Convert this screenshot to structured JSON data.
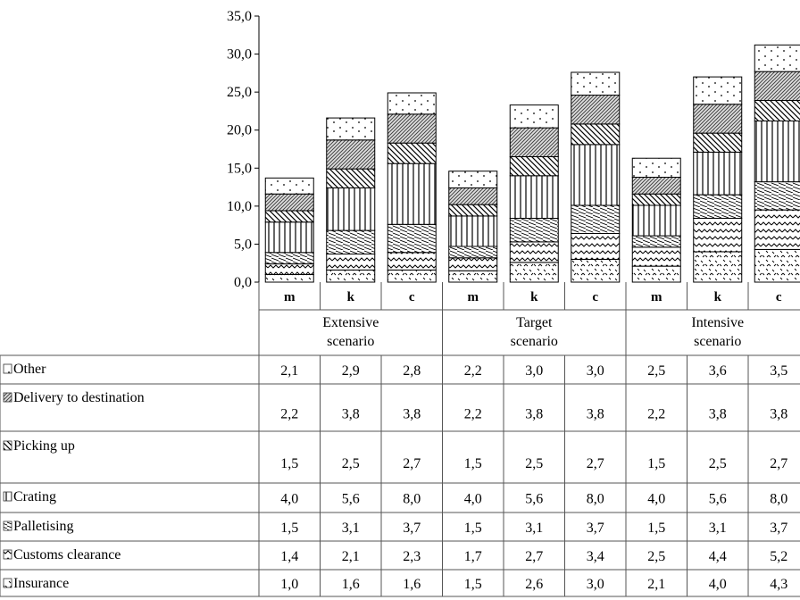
{
  "chart_data": {
    "type": "bar",
    "stacked": true,
    "title": "",
    "xlabel": "",
    "ylabel": "",
    "ylim": [
      0,
      35
    ],
    "yticks": [
      "0,0",
      "5,0",
      "10,0",
      "15,0",
      "20,0",
      "25,0",
      "30,0",
      "35,0"
    ],
    "grid": false,
    "legend": "table-rows",
    "groups": [
      {
        "label": "Extensive scenario",
        "lines": [
          "Extensive",
          "scenario"
        ]
      },
      {
        "label": "Target scenario",
        "lines": [
          "Target",
          "scenario"
        ]
      },
      {
        "label": "Intensive scenario",
        "lines": [
          "Intensive",
          "scenario"
        ]
      }
    ],
    "categories": [
      "m",
      "k",
      "c",
      "m",
      "k",
      "c",
      "m",
      "k",
      "c"
    ],
    "series": [
      {
        "name": "Other",
        "values": [
          "2,1",
          "2,9",
          "2,8",
          "2,2",
          "3,0",
          "3,0",
          "2,5",
          "3,6",
          "3,5"
        ]
      },
      {
        "name": "Delivery to destination",
        "values": [
          "2,2",
          "3,8",
          "3,8",
          "2,2",
          "3,8",
          "3,8",
          "2,2",
          "3,8",
          "3,8"
        ]
      },
      {
        "name": "Picking up",
        "values": [
          "1,5",
          "2,5",
          "2,7",
          "1,5",
          "2,5",
          "2,7",
          "1,5",
          "2,5",
          "2,7"
        ]
      },
      {
        "name": "Crating",
        "values": [
          "4,0",
          "5,6",
          "8,0",
          "4,0",
          "5,6",
          "8,0",
          "4,0",
          "5,6",
          "8,0"
        ]
      },
      {
        "name": "Palletising",
        "values": [
          "1,5",
          "3,1",
          "3,7",
          "1,5",
          "3,1",
          "3,7",
          "1,5",
          "3,1",
          "3,7"
        ]
      },
      {
        "name": "Customs clearance",
        "values": [
          "1,4",
          "2,1",
          "2,3",
          "1,7",
          "2,7",
          "3,4",
          "2,5",
          "4,4",
          "5,2"
        ]
      },
      {
        "name": "Insurance",
        "values": [
          "1,0",
          "1,6",
          "1,6",
          "1,5",
          "2,6",
          "3,0",
          "2,1",
          "4,0",
          "4,3"
        ]
      }
    ]
  }
}
